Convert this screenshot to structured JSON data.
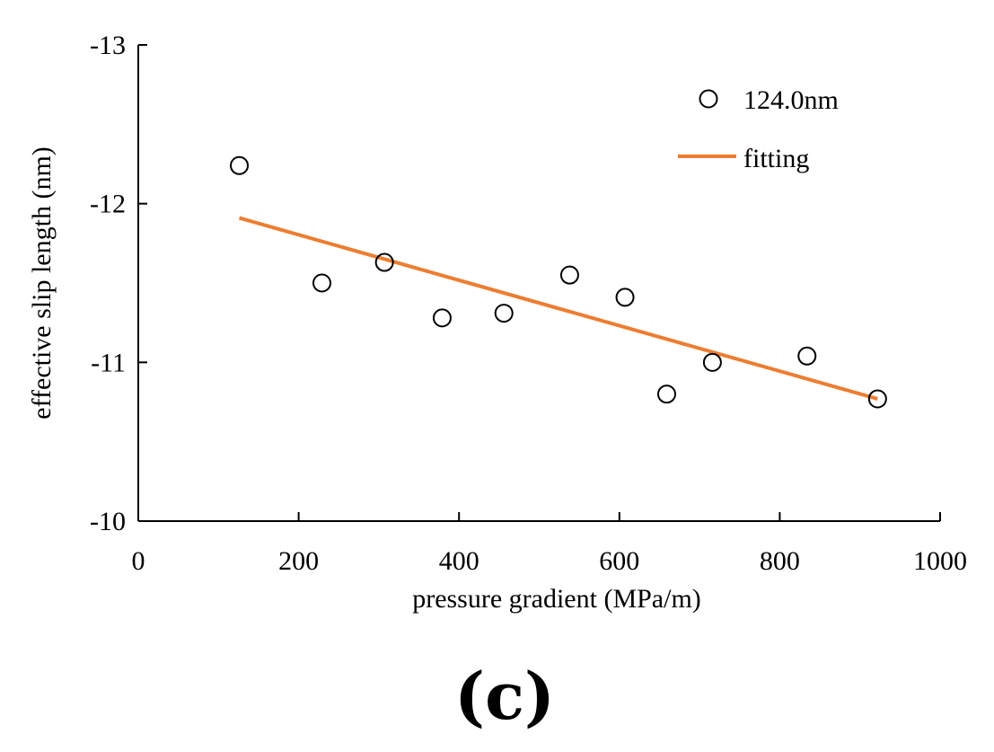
{
  "chart_data": {
    "type": "scatter",
    "title": "",
    "xlabel": "pressure gradient (MPa/m)",
    "ylabel": "effective slip length (nm)",
    "xlim": [
      0,
      1000
    ],
    "ylim": [
      -10,
      -13
    ],
    "xticks": [
      0,
      200,
      400,
      600,
      800,
      1000
    ],
    "yticks": [
      -10,
      -11,
      -12,
      -13
    ],
    "xtick_labels": [
      "0",
      "200",
      "400",
      "600",
      "800",
      "1000"
    ],
    "ytick_labels": [
      "-10",
      "-11",
      "-12",
      "-13"
    ],
    "legend_position": "top-right",
    "series": [
      {
        "name": "124.0nm",
        "kind": "scatter",
        "marker": "open-circle",
        "color": "#000000",
        "x": [
          126,
          229,
          307,
          379,
          456,
          538,
          607,
          659,
          716,
          834,
          922
        ],
        "y": [
          -12.24,
          -11.5,
          -11.63,
          -11.28,
          -11.31,
          -11.55,
          -11.41,
          -10.8,
          -11.0,
          -11.04,
          -10.77
        ]
      },
      {
        "name": "fitting",
        "kind": "line",
        "color": "#ED7D31",
        "x": [
          126,
          922
        ],
        "y": [
          -11.91,
          -10.77
        ]
      }
    ],
    "panel_label": "(c)"
  }
}
